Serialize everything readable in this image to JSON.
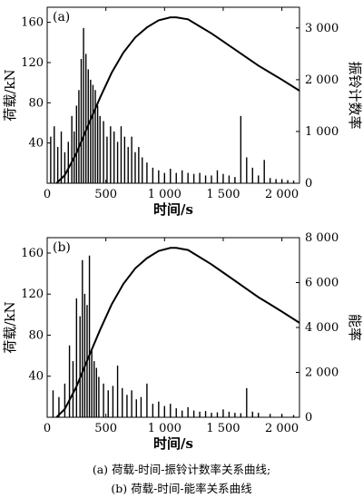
{
  "chart_data": [
    {
      "type": "bar",
      "panel_label": "(a)",
      "xlabel": "时间/s",
      "ylabel": "荷载/kN",
      "y2label": "振铃计数率",
      "xlim": [
        0,
        2150
      ],
      "ylim": [
        0,
        175
      ],
      "y2lim": [
        0,
        3400
      ],
      "xticks": [
        0,
        500,
        1000,
        1500,
        2000
      ],
      "xtick_labels": [
        "0",
        "500",
        "1 000",
        "1 500",
        "2 000"
      ],
      "yticks": [
        40,
        80,
        120,
        160
      ],
      "ytick_labels": [
        "40",
        "80",
        "120",
        "160"
      ],
      "y2ticks": [
        0,
        1000,
        2000,
        3000
      ],
      "y2tick_labels": [
        "0",
        "1 000",
        "2 000",
        "3 000"
      ],
      "grid": false,
      "series": [
        {
          "axis": "left",
          "style": "line",
          "x": [
            80,
            150,
            250,
            350,
            450,
            550,
            650,
            750,
            850,
            950,
            1050,
            1100,
            1200,
            1300,
            1400,
            1500,
            1600,
            1700,
            1800,
            1900,
            2000,
            2150
          ],
          "values": [
            0,
            8,
            30,
            58,
            85,
            110,
            130,
            145,
            155,
            162,
            165,
            165,
            163,
            156,
            149,
            141,
            133,
            125,
            117,
            110,
            103,
            92
          ]
        },
        {
          "axis": "right",
          "style": "bars",
          "x": [
            30,
            60,
            90,
            120,
            150,
            180,
            210,
            230,
            250,
            270,
            290,
            310,
            330,
            350,
            370,
            390,
            410,
            430,
            450,
            480,
            510,
            540,
            570,
            600,
            630,
            660,
            690,
            720,
            750,
            780,
            810,
            850,
            900,
            950,
            1000,
            1050,
            1100,
            1150,
            1200,
            1250,
            1300,
            1350,
            1400,
            1450,
            1500,
            1550,
            1600,
            1650,
            1700,
            1750,
            1800,
            1850,
            1900,
            1950,
            2000,
            2050,
            2100
          ],
          "values": [
            900,
            1100,
            700,
            1000,
            600,
            800,
            1300,
            1000,
            1500,
            1800,
            2400,
            3000,
            2500,
            2200,
            2000,
            1900,
            1800,
            1500,
            1300,
            1200,
            900,
            1100,
            1000,
            800,
            1100,
            900,
            700,
            900,
            600,
            700,
            500,
            400,
            300,
            250,
            200,
            280,
            200,
            250,
            200,
            180,
            200,
            150,
            150,
            250,
            180,
            150,
            120,
            1300,
            500,
            300,
            150,
            450,
            100,
            80,
            80,
            60,
            50
          ]
        }
      ]
    },
    {
      "type": "bar",
      "panel_label": "(b)",
      "xlabel": "时间/s",
      "ylabel": "荷载/kN",
      "y2label": "能率",
      "xlim": [
        0,
        2150
      ],
      "ylim": [
        0,
        175
      ],
      "y2lim": [
        0,
        8000
      ],
      "xticks": [
        0,
        500,
        1000,
        1500,
        2000
      ],
      "xtick_labels": [
        "0",
        "500",
        "1 000",
        "1 500",
        "2 000"
      ],
      "yticks": [
        40,
        80,
        120,
        160
      ],
      "ytick_labels": [
        "40",
        "80",
        "120",
        "160"
      ],
      "y2ticks": [
        0,
        2000,
        4000,
        6000,
        8000
      ],
      "y2tick_labels": [
        "0",
        "2 000",
        "4 000",
        "6 000",
        "8 000"
      ],
      "grid": false,
      "series": [
        {
          "axis": "left",
          "style": "line",
          "x": [
            80,
            150,
            250,
            350,
            450,
            550,
            650,
            750,
            850,
            950,
            1050,
            1100,
            1200,
            1300,
            1400,
            1500,
            1600,
            1700,
            1800,
            1900,
            2000,
            2150
          ],
          "values": [
            0,
            8,
            30,
            58,
            85,
            110,
            130,
            145,
            155,
            162,
            165,
            165,
            163,
            156,
            149,
            141,
            133,
            125,
            117,
            110,
            103,
            92
          ]
        },
        {
          "axis": "right",
          "style": "bars",
          "x": [
            50,
            100,
            150,
            190,
            220,
            250,
            280,
            300,
            320,
            340,
            360,
            380,
            400,
            420,
            440,
            480,
            520,
            560,
            600,
            640,
            680,
            720,
            760,
            800,
            850,
            900,
            950,
            1000,
            1050,
            1100,
            1150,
            1200,
            1250,
            1300,
            1350,
            1400,
            1450,
            1500,
            1550,
            1600,
            1650,
            1700,
            1750,
            1800,
            1900,
            2000,
            2100
          ],
          "values": [
            1200,
            900,
            1500,
            3200,
            2500,
            5300,
            4500,
            7000,
            5500,
            5000,
            7200,
            3000,
            2500,
            2200,
            1800,
            1500,
            1200,
            1400,
            2300,
            1300,
            1000,
            1200,
            800,
            900,
            1500,
            600,
            700,
            500,
            600,
            400,
            300,
            450,
            300,
            250,
            280,
            200,
            220,
            350,
            250,
            200,
            180,
            1300,
            250,
            200,
            150,
            120,
            100
          ]
        }
      ]
    }
  ],
  "captions": {
    "a": "(a)  荷载-时间-振铃计数率关系曲线;",
    "b": "(b)  荷载-时间-能率关系曲线"
  },
  "colors": {
    "ink": "#000000"
  }
}
